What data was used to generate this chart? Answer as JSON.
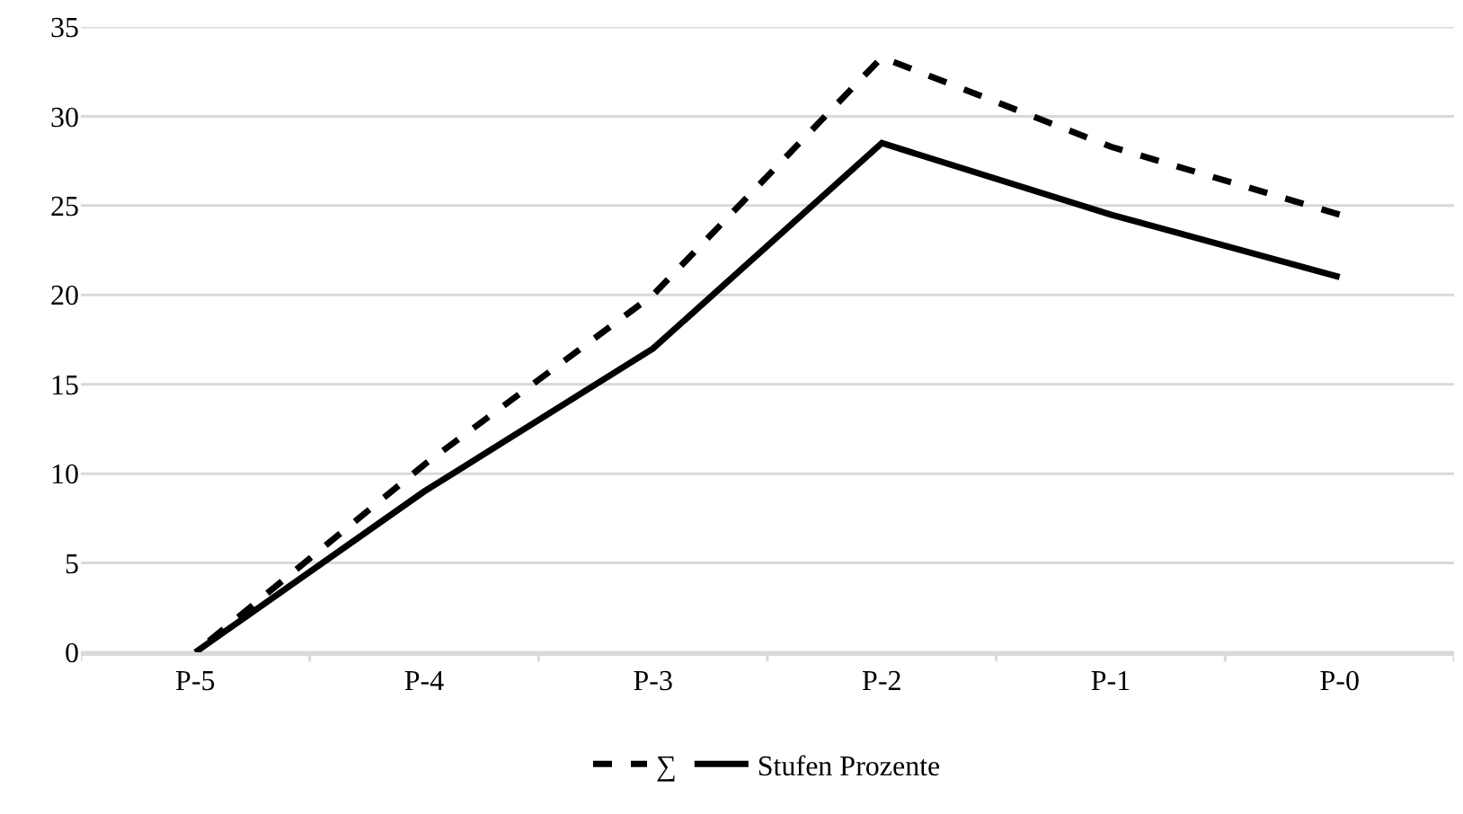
{
  "chart_data": {
    "type": "line",
    "categories": [
      "P-5",
      "P-4",
      "P-3",
      "P-2",
      "P-1",
      "P-0"
    ],
    "series": [
      {
        "name": "∑",
        "color": "#000000",
        "line_style": "dashed",
        "values": [
          0,
          10.5,
          20,
          33.3,
          28.3,
          24.5
        ]
      },
      {
        "name": "Stufen Prozente",
        "color": "#000000",
        "line_style": "solid",
        "values": [
          0,
          9,
          17,
          28.5,
          24.5,
          21
        ]
      }
    ],
    "ylim": [
      0,
      35
    ],
    "yticks": [
      0,
      5,
      10,
      15,
      20,
      25,
      30,
      35
    ],
    "grid": "y",
    "legend": "bottom",
    "marker": "none"
  }
}
